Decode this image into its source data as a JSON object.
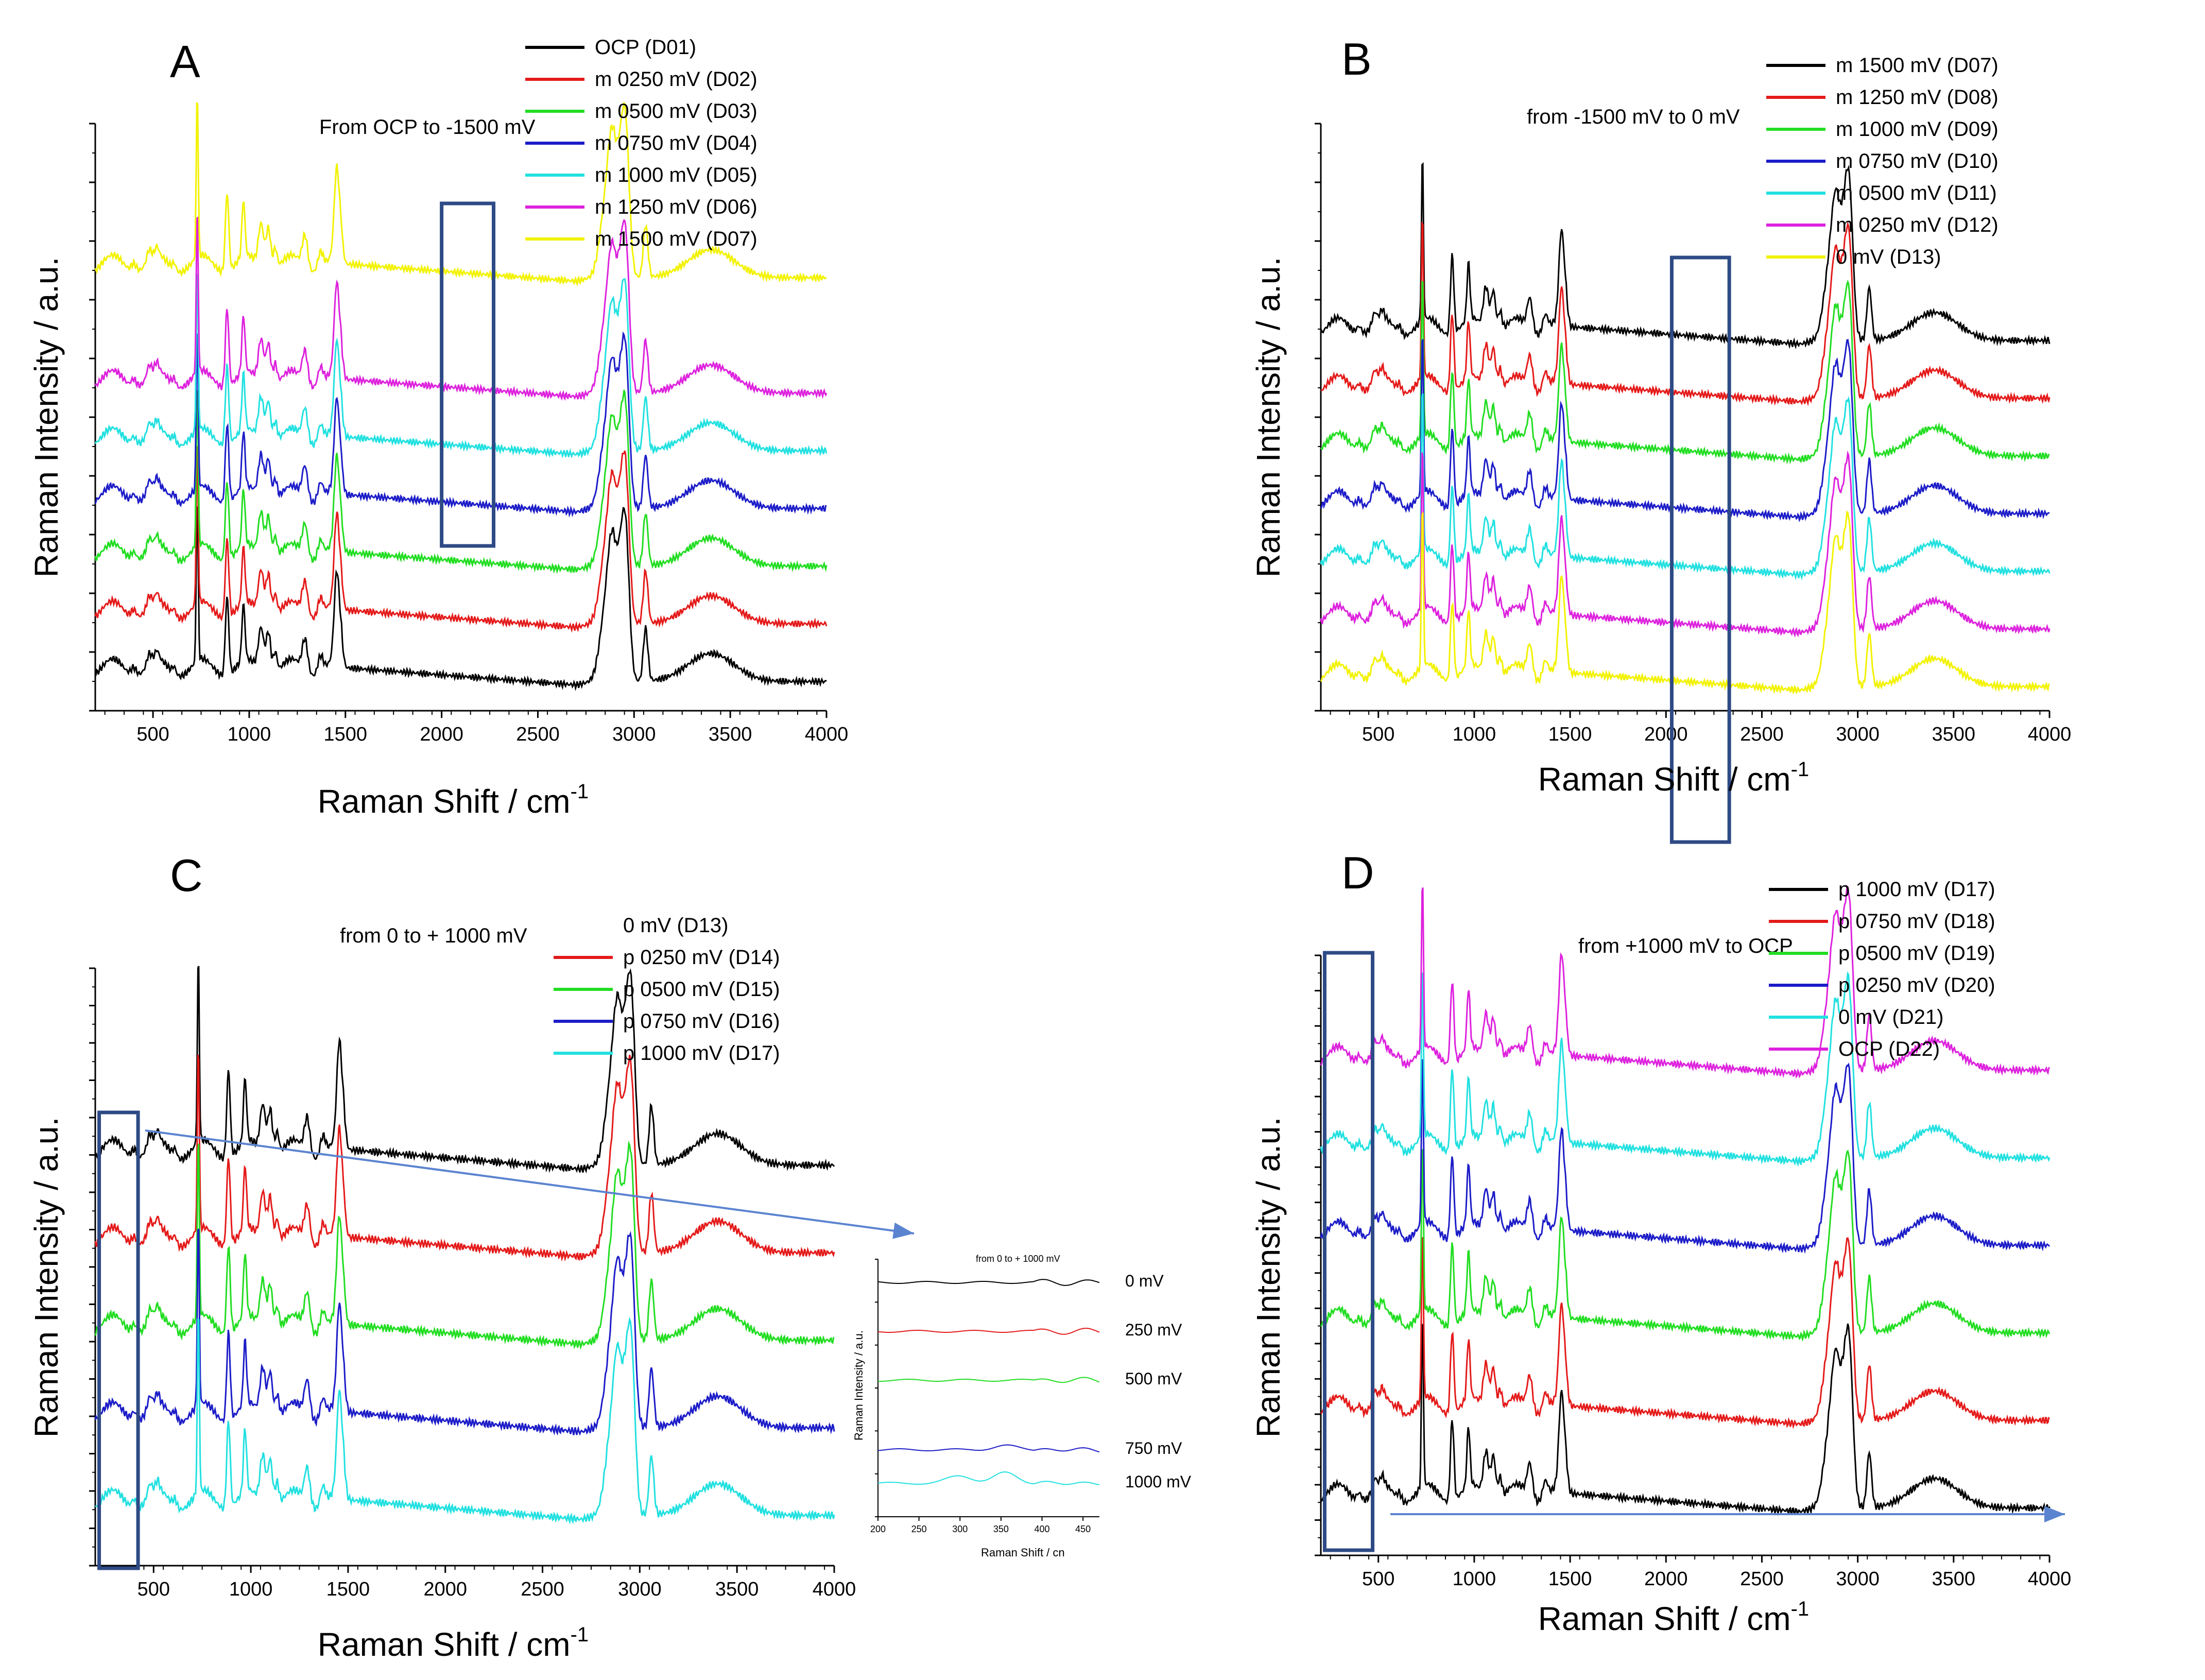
{
  "colors": {
    "black": "#000000",
    "red": "#e41a1a",
    "green": "#22dd22",
    "blue": "#1c1cc8",
    "cyan": "#22e0e0",
    "magenta": "#dd22dd",
    "yellow": "#f2f200",
    "box": "#2e4a86",
    "arrow": "#5b84d0"
  },
  "chart_data": [
    {
      "type": "line",
      "panel_label": "A",
      "title": "From OCP to -1500 mV",
      "xlabel": "Raman Shift / cm",
      "xlabel_sup": "-1",
      "ylabel": "Raman Intensity / a.u.",
      "xlim": [
        200,
        4000
      ],
      "xticks": [
        500,
        1000,
        1500,
        2000,
        2500,
        3000,
        3500,
        4000
      ],
      "ytick_count": 10,
      "y_units": "arbitrary (stacked offset spectra)",
      "legend": [
        {
          "name": "OCP (D01)",
          "color": "#000000",
          "offset": 0
        },
        {
          "name": "m 0250 mV (D02)",
          "color": "#e41a1a",
          "offset": 1
        },
        {
          "name": "m 0500 mV (D03)",
          "color": "#22dd22",
          "offset": 2
        },
        {
          "name": "m 0750 mV (D04)",
          "color": "#1c1cc8",
          "offset": 3
        },
        {
          "name": "m 1000 mV (D05)",
          "color": "#22e0e0",
          "offset": 4
        },
        {
          "name": "m 1250 mV (D06)",
          "color": "#dd22dd",
          "offset": 5
        },
        {
          "name": "m 1500 mV (D07)",
          "color": "#f2f200",
          "offset": 7
        }
      ],
      "highlight_box_x": [
        2000,
        2270
      ]
    },
    {
      "type": "line",
      "panel_label": "B",
      "title": "from -1500 mV to 0 mV",
      "xlabel": "Raman Shift / cm",
      "xlabel_sup": "-1",
      "ylabel": "Raman Intensity / a.u.",
      "xlim": [
        200,
        4000
      ],
      "xticks": [
        500,
        1000,
        1500,
        2000,
        2500,
        3000,
        3500,
        4000
      ],
      "ytick_count": 10,
      "y_units": "arbitrary (stacked offset spectra)",
      "legend": [
        {
          "name": "m 1500 mV (D07)",
          "color": "#000000",
          "offset": 6
        },
        {
          "name": "m 1250 mV (D08)",
          "color": "#e41a1a",
          "offset": 5
        },
        {
          "name": "m 1000 mV (D09)",
          "color": "#22dd22",
          "offset": 4
        },
        {
          "name": "m 0750 mV (D10)",
          "color": "#1c1cc8",
          "offset": 3
        },
        {
          "name": "m 0500 mV (D11)",
          "color": "#22e0e0",
          "offset": 2
        },
        {
          "name": "m 0250 mV (D12)",
          "color": "#dd22dd",
          "offset": 1
        },
        {
          "name": "0 mV (D13)",
          "color": "#f2f200",
          "offset": 0
        }
      ],
      "highlight_box_x": [
        2030,
        2330
      ]
    },
    {
      "type": "line",
      "panel_label": "C",
      "title": "from 0 to + 1000 mV",
      "xlabel": "Raman Shift / cm",
      "xlabel_sup": "-1",
      "ylabel": "Raman Intensity / a.u.",
      "xlim": [
        200,
        4000
      ],
      "xticks": [
        500,
        1000,
        1500,
        2000,
        2500,
        3000,
        3500,
        4000
      ],
      "ytick_count": 16,
      "y_units": "arbitrary (stacked offset spectra)",
      "legend": [
        {
          "name": "0 mV (D13)",
          "color": "#000000",
          "offset": 4
        },
        {
          "name": "p 0250 mV (D14)",
          "color": "#e41a1a",
          "offset": 3
        },
        {
          "name": "p 0500 mV (D15)",
          "color": "#22dd22",
          "offset": 2
        },
        {
          "name": "p 0750 mV (D16)",
          "color": "#1c1cc8",
          "offset": 1
        },
        {
          "name": "p 1000 mV (D17)",
          "color": "#22e0e0",
          "offset": 0
        }
      ],
      "highlight_box_x": [
        220,
        420
      ],
      "inset": {
        "title": "from 0 to + 1000 mV",
        "xlabel": "Raman Shift / cn",
        "ylabel": "Raman Intensity / a.u.",
        "xlim": [
          200,
          470
        ],
        "xticks": [
          200,
          250,
          300,
          350,
          400,
          450
        ],
        "series_labels": [
          "0 mV",
          "250 mV",
          "500 mV",
          "750 mV",
          "1000 mV"
        ]
      }
    },
    {
      "type": "line",
      "panel_label": "D",
      "title": "from +1000 mV to OCP",
      "xlabel": "Raman Shift / cm",
      "xlabel_sup": "-1",
      "ylabel": "Raman Intensity / a.u.",
      "xlim": [
        200,
        4000
      ],
      "xticks": [
        500,
        1000,
        1500,
        2000,
        2500,
        3000,
        3500,
        4000
      ],
      "ytick_count": 17,
      "y_units": "arbitrary (stacked offset spectra)",
      "legend": [
        {
          "name": "p 1000 mV (D17)",
          "color": "#000000",
          "offset": 0
        },
        {
          "name": "p 0750 mV (D18)",
          "color": "#e41a1a",
          "offset": 1
        },
        {
          "name": "p 0500 mV (D19)",
          "color": "#22dd22",
          "offset": 2
        },
        {
          "name": "p 0250 mV (D20)",
          "color": "#1c1cc8",
          "offset": 3
        },
        {
          "name": "0 mV (D21)",
          "color": "#22e0e0",
          "offset": 4
        },
        {
          "name": "OCP (D22)",
          "color": "#dd22dd",
          "offset": 5
        }
      ],
      "highlight_box_x": [
        220,
        470
      ]
    }
  ]
}
